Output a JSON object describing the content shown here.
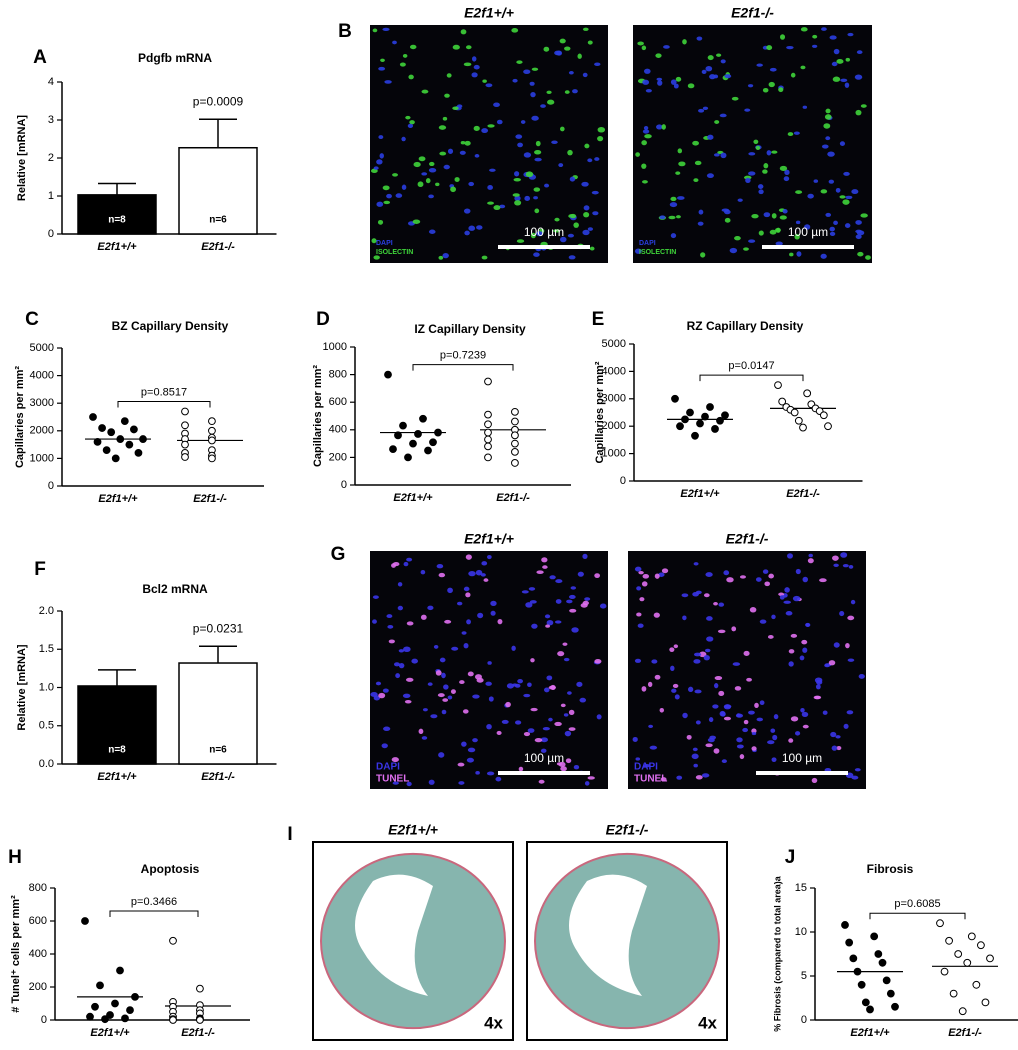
{
  "chart_data": [
    {
      "type": "bar",
      "panel": "A",
      "title": "Pdgfb mRNA",
      "y_label": "Relative [mRNA]",
      "categories": [
        "E2f1+/+",
        "E2f1-/-"
      ],
      "values": [
        1.03,
        2.27
      ],
      "errors": [
        0.3,
        0.75
      ],
      "colors": [
        "#000000",
        "#ffffff"
      ],
      "n_labels": [
        "n=8",
        "n=6"
      ],
      "p_label": "p=0.0009",
      "ylim": [
        0,
        4
      ],
      "yticks": [
        0,
        1,
        2,
        3,
        4
      ]
    },
    {
      "type": "dot",
      "panel": "C",
      "title": "BZ Capillary Density",
      "y_label": "Capillaries per mm²",
      "categories": [
        "E2f1+/+",
        "E2f1-/-"
      ],
      "groups": [
        [
          2500,
          2350,
          2100,
          2050,
          1950,
          1700,
          1700,
          1600,
          1500,
          1300,
          1200,
          1000
        ],
        [
          2700,
          2350,
          2200,
          2000,
          1900,
          1750,
          1700,
          1650,
          1500,
          1300,
          1200,
          1100,
          1050,
          1000
        ]
      ],
      "means": [
        1700,
        1650
      ],
      "marker_fills": [
        "#000000",
        "#ffffff"
      ],
      "p_label": "p=0.8517",
      "ylim": [
        0,
        5000
      ],
      "yticks": [
        0,
        1000,
        2000,
        3000,
        4000,
        5000
      ]
    },
    {
      "type": "dot",
      "panel": "D",
      "title": "IZ Capillary Density",
      "y_label": "Capillaries per mm²",
      "categories": [
        "E2f1+/+",
        "E2f1-/-"
      ],
      "groups": [
        [
          800,
          480,
          430,
          380,
          370,
          360,
          310,
          300,
          260,
          250,
          200
        ],
        [
          750,
          530,
          510,
          460,
          440,
          400,
          380,
          360,
          330,
          300,
          280,
          240,
          200,
          160
        ]
      ],
      "means": [
        380,
        400
      ],
      "marker_fills": [
        "#000000",
        "#ffffff"
      ],
      "p_label": "p=0.7239",
      "ylim": [
        0,
        1000
      ],
      "yticks": [
        0,
        200,
        400,
        600,
        800,
        1000
      ]
    },
    {
      "type": "dot",
      "panel": "E",
      "title": "RZ Capillary Density",
      "y_label": "Capillaries per mm²",
      "categories": [
        "E2f1+/+",
        "E2f1-/-"
      ],
      "groups": [
        [
          3000,
          2700,
          2500,
          2400,
          2350,
          2250,
          2200,
          2100,
          2000,
          1900,
          1650
        ],
        [
          3500,
          3200,
          2900,
          2800,
          2700,
          2650,
          2600,
          2550,
          2500,
          2400,
          2200,
          2000,
          1950
        ]
      ],
      "means": [
        2250,
        2650
      ],
      "marker_fills": [
        "#000000",
        "#ffffff"
      ],
      "p_label": "p=0.0147",
      "ylim": [
        0,
        5000
      ],
      "yticks": [
        0,
        1000,
        2000,
        3000,
        4000,
        5000
      ]
    },
    {
      "type": "bar",
      "panel": "F",
      "title": "Bcl2 mRNA",
      "y_label": "Relative [mRNA]",
      "categories": [
        "E2f1+/+",
        "E2f1-/-"
      ],
      "values": [
        1.02,
        1.32
      ],
      "errors": [
        0.21,
        0.22
      ],
      "colors": [
        "#000000",
        "#ffffff"
      ],
      "n_labels": [
        "n=8",
        "n=6"
      ],
      "p_label": "p=0.0231",
      "ylim": [
        0,
        2
      ],
      "yticks": [
        {
          "value": 0,
          "label": "0.0"
        },
        {
          "value": 0.5,
          "label": "0.5"
        },
        {
          "value": 1,
          "label": "1.0"
        },
        {
          "value": 1.5,
          "label": "1.5"
        },
        {
          "value": 2,
          "label": "2.0"
        }
      ]
    },
    {
      "type": "dot",
      "panel": "H",
      "title": "Apoptosis",
      "y_label": "# Tunel⁺ cells per mm²",
      "categories": [
        "E2f1+/+",
        "E2f1-/-"
      ],
      "groups": [
        [
          600,
          300,
          210,
          140,
          100,
          80,
          60,
          30,
          20,
          10,
          5
        ],
        [
          480,
          190,
          110,
          90,
          80,
          60,
          50,
          40,
          20,
          10,
          5,
          5,
          0,
          0
        ]
      ],
      "means": [
        140,
        85
      ],
      "marker_fills": [
        "#000000",
        "#ffffff"
      ],
      "p_label": "p=0.3466",
      "ylim": [
        0,
        800
      ],
      "yticks": [
        0,
        200,
        400,
        600,
        800
      ]
    },
    {
      "type": "dot",
      "panel": "J",
      "title": "Fibrosis",
      "y_label": "% Fibrosis (compared to total area)a",
      "categories": [
        "E2f1+/+",
        "E2f1-/-"
      ],
      "groups": [
        [
          10.8,
          9.5,
          8.8,
          7.5,
          7.0,
          6.5,
          5.5,
          4.5,
          4.0,
          3.0,
          2.0,
          1.5,
          1.2
        ],
        [
          11,
          9.5,
          9.0,
          8.5,
          7.5,
          7.0,
          6.5,
          5.5,
          4.0,
          3.0,
          2.0,
          1.0
        ]
      ],
      "means": [
        5.5,
        6.1
      ],
      "marker_fills": [
        "#000000",
        "#ffffff"
      ],
      "p_label": "p=0.6085",
      "ylim": [
        0,
        15
      ],
      "yticks": [
        0,
        5,
        10,
        15
      ]
    }
  ],
  "image_panels": [
    {
      "panel": "B",
      "images": [
        {
          "caption": "E2f1+/+",
          "stain_labels": [
            "DAPI",
            "ISOLECTIN"
          ],
          "scale_bar": "100 µm"
        },
        {
          "caption": "E2f1-/-",
          "stain_labels": [
            "DAPI",
            "ISOLECTIN"
          ],
          "scale_bar": "100 µm"
        }
      ]
    },
    {
      "panel": "G",
      "images": [
        {
          "caption": "E2f1+/+",
          "stain_labels": [
            "DAPI",
            "TUNEL"
          ],
          "scale_bar": "100 µm"
        },
        {
          "caption": "E2f1-/-",
          "stain_labels": [
            "DAPI",
            "TUNEL"
          ],
          "scale_bar": "100 µm"
        }
      ]
    },
    {
      "panel": "I",
      "images": [
        {
          "caption": "E2f1+/+",
          "magnification": "4x"
        },
        {
          "caption": "E2f1-/-",
          "magnification": "4x"
        }
      ]
    }
  ]
}
